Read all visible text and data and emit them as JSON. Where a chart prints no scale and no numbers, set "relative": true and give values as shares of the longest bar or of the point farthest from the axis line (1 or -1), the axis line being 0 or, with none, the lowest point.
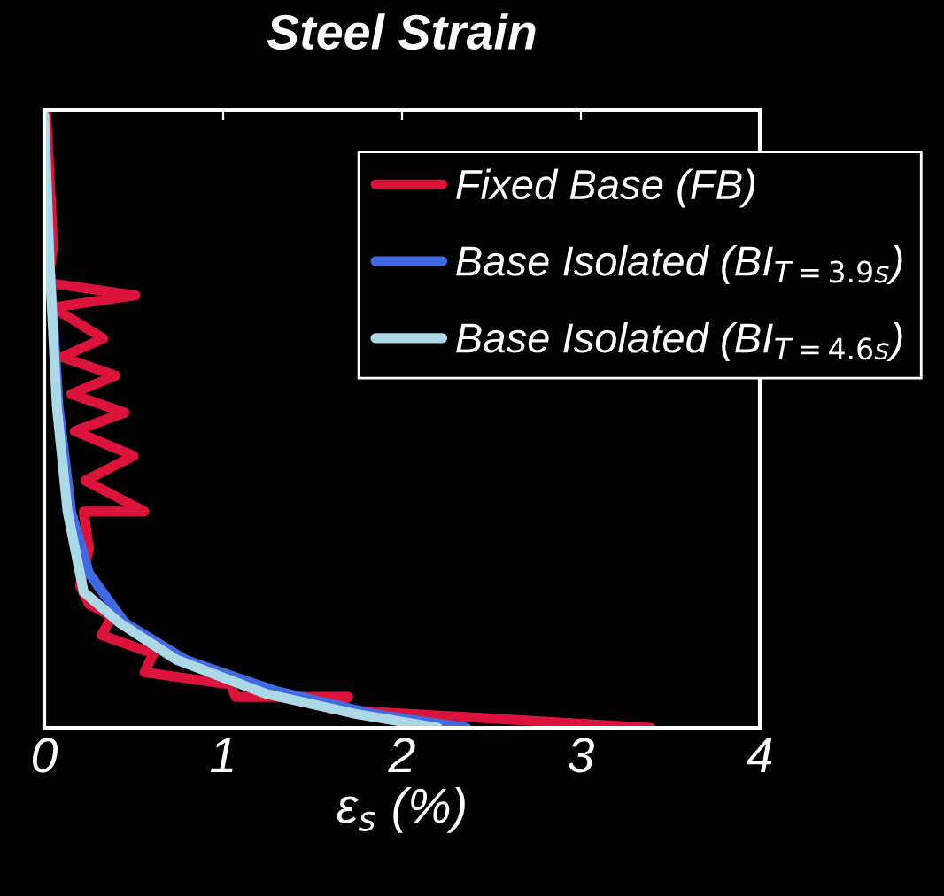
{
  "chart_data": {
    "type": "line",
    "title": "Steel Strain",
    "xlabel": "ε$_{s}$ (%)",
    "relative": true,
    "xlim": [
      0,
      4
    ],
    "xticks": [
      0,
      1,
      2,
      3,
      4
    ],
    "grid": false,
    "legend": "top right",
    "marker": "none",
    "line_style": "solid",
    "tick_labels": "x",
    "series": [
      {
        "name": "Fixed Base (FB)",
        "color": "#dc143c",
        "x": [
          0.01,
          0.05,
          0.02,
          0.51,
          0.05,
          0.33,
          0.1,
          0.4,
          0.15,
          0.45,
          0.17,
          0.5,
          0.23,
          0.56,
          0.22,
          0.25,
          0.2,
          0.25,
          0.38,
          0.32,
          0.61,
          0.56,
          1.04,
          1.07,
          1.7,
          1.6,
          3.39
        ],
        "values": [
          1.0,
          0.78,
          0.72,
          0.7,
          0.68,
          0.63,
          0.6,
          0.57,
          0.54,
          0.51,
          0.48,
          0.44,
          0.4,
          0.35,
          0.35,
          0.29,
          0.23,
          0.2,
          0.18,
          0.15,
          0.12,
          0.09,
          0.07,
          0.05,
          0.05,
          0.03,
          0.0
        ]
      },
      {
        "name": "Base Isolated (BI$_{T=3.9s}$)",
        "color": "#4169e1",
        "x": [
          0.0,
          0.03,
          0.08,
          0.15,
          0.25,
          0.45,
          0.79,
          1.29,
          1.83,
          2.36
        ],
        "values": [
          0.99,
          0.75,
          0.52,
          0.35,
          0.25,
          0.17,
          0.11,
          0.06,
          0.023,
          0.0
        ]
      },
      {
        "name": "Base Isolated (BI$_{T=4.6s}$)",
        "color": "#add8e6",
        "x": [
          0.0,
          0.03,
          0.07,
          0.13,
          0.22,
          0.42,
          0.74,
          1.24,
          1.73,
          2.2
        ],
        "values": [
          0.99,
          0.75,
          0.52,
          0.35,
          0.22,
          0.17,
          0.11,
          0.055,
          0.023,
          0.0
        ]
      }
    ]
  }
}
